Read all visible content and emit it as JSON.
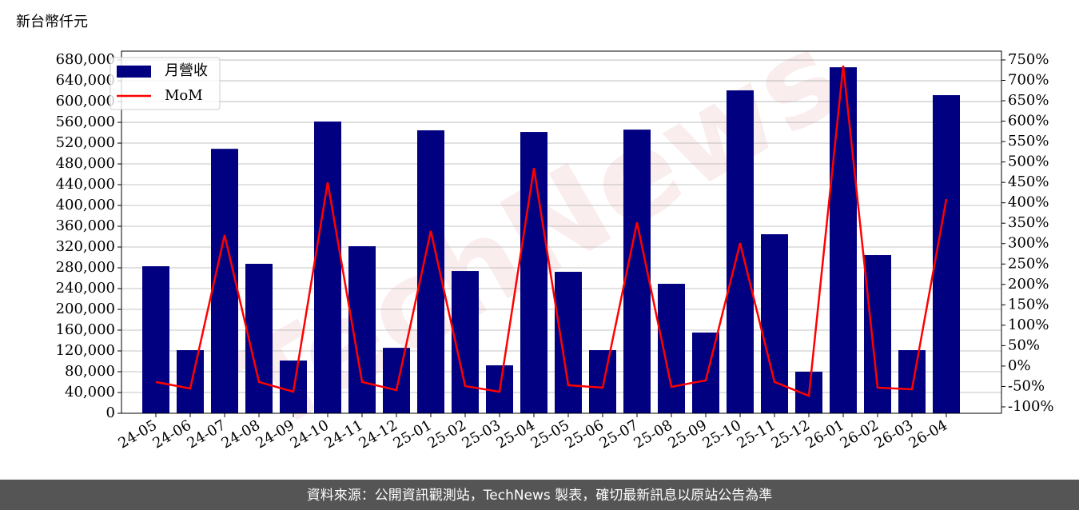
{
  "chart_data": {
    "type": "bar-line",
    "unit_label": "新台幣仟元",
    "watermark": "TechNews",
    "footer": "資料來源：公開資訊觀測站，TechNews 製表，確切最新訊息以原站公告為準",
    "categories": [
      "24-05",
      "24-06",
      "24-07",
      "24-08",
      "24-09",
      "24-10",
      "24-11",
      "24-12",
      "25-01",
      "25-02",
      "25-03",
      "25-04",
      "25-05",
      "25-06",
      "25-07",
      "25-08",
      "25-09",
      "25-10",
      "25-11",
      "25-12",
      "26-01",
      "26-02",
      "26-03",
      "26-04"
    ],
    "series": [
      {
        "name": "月營收",
        "type": "bar",
        "color": "#000080",
        "axis": "y",
        "values": [
          283000,
          121500,
          509000,
          287700,
          101500,
          561500,
          321500,
          126000,
          544600,
          273800,
          92300,
          541500,
          272300,
          121500,
          546000,
          249200,
          155400,
          621500,
          344600,
          80000,
          666000,
          304600,
          121500,
          612300
        ]
      },
      {
        "name": "MoM",
        "type": "line",
        "color": "#ff0000",
        "axis": "y2",
        "values": [
          -39,
          -55,
          321,
          -39,
          -63,
          450,
          -39,
          -59,
          331,
          -49,
          -63,
          485,
          -47,
          -53,
          352,
          -51,
          -35,
          301,
          -39,
          -73,
          736,
          -53,
          -57,
          409
        ]
      }
    ],
    "ylim": [
      0,
      697000
    ],
    "yticks": [
      0,
      {
        "value": 40000,
        "label": "40,000"
      },
      {
        "value": 80000,
        "label": "80,000"
      },
      {
        "value": 120000,
        "label": "120,000"
      },
      {
        "value": 160000,
        "label": "160,000"
      },
      {
        "value": 200000,
        "label": "200,000"
      },
      {
        "value": 240000,
        "label": "240,000"
      },
      {
        "value": 280000,
        "label": "280,000"
      },
      {
        "value": 320000,
        "label": "320,000"
      },
      {
        "value": 360000,
        "label": "360,000"
      },
      {
        "value": 400000,
        "label": "400,000"
      },
      {
        "value": 440000,
        "label": "440,000"
      },
      {
        "value": 480000,
        "label": "480,000"
      },
      {
        "value": 520000,
        "label": "520,000"
      },
      {
        "value": 560000,
        "label": "560,000"
      },
      {
        "value": 600000,
        "label": "600,000"
      },
      {
        "value": 640000,
        "label": "640,000"
      },
      {
        "value": 680000,
        "label": "680,000"
      }
    ],
    "y2lim": [
      -115.7,
      771.5
    ],
    "y2ticks": [
      {
        "value": -100,
        "label": "-100%"
      },
      {
        "value": -50,
        "label": "-50%"
      },
      {
        "value": 0,
        "label": "0%"
      },
      {
        "value": 50,
        "label": "50%"
      },
      {
        "value": 100,
        "label": "100%"
      },
      {
        "value": 150,
        "label": "150%"
      },
      {
        "value": 200,
        "label": "200%"
      },
      {
        "value": 250,
        "label": "250%"
      },
      {
        "value": 300,
        "label": "300%"
      },
      {
        "value": 350,
        "label": "350%"
      },
      {
        "value": 400,
        "label": "400%"
      },
      {
        "value": 450,
        "label": "450%"
      },
      {
        "value": 500,
        "label": "500%"
      },
      {
        "value": 550,
        "label": "550%"
      },
      {
        "value": 600,
        "label": "600%"
      },
      {
        "value": 650,
        "label": "650%"
      },
      {
        "value": 700,
        "label": "700%"
      },
      {
        "value": 750,
        "label": "750%"
      }
    ],
    "grid": true,
    "legend": "upper left"
  }
}
